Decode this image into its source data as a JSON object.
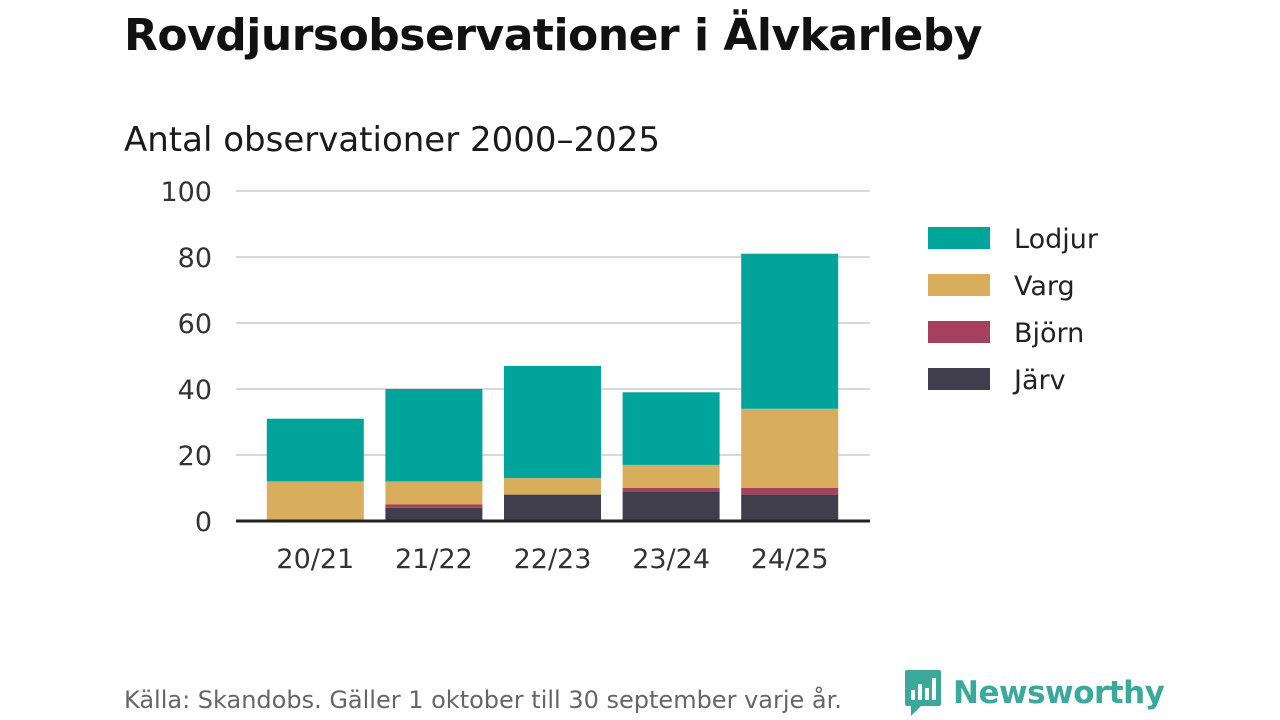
{
  "header": {
    "title": "Rovdjursobservationer i Älvkarleby",
    "subtitle": "Antal observationer 2000–2025"
  },
  "footer": {
    "source": "Källa: Skandobs. Gäller 1 oktober till 30 september varje år.",
    "brand": "Newsworthy"
  },
  "colors": {
    "Lodjur": "#00a49a",
    "Varg": "#d8ad5b",
    "Björn": "#a6405f",
    "Järv": "#403d4c",
    "grid": "#d9d9d9",
    "axis": "#222222",
    "brand": "#3aa89a"
  },
  "chart_data": {
    "type": "bar",
    "stacked": true,
    "title": "Antal observationer 2000–2025",
    "categories": [
      "20/21",
      "21/22",
      "22/23",
      "23/24",
      "24/25"
    ],
    "series": [
      {
        "name": "Järv",
        "values": [
          0,
          4,
          8,
          9,
          8
        ]
      },
      {
        "name": "Björn",
        "values": [
          0,
          1,
          0,
          1,
          2
        ]
      },
      {
        "name": "Varg",
        "values": [
          12,
          7,
          5,
          7,
          24
        ]
      },
      {
        "name": "Lodjur",
        "values": [
          19,
          28,
          34,
          22,
          47
        ]
      }
    ],
    "legend_order": [
      "Lodjur",
      "Varg",
      "Björn",
      "Järv"
    ],
    "ylim": [
      0,
      100
    ],
    "yticks": [
      0,
      20,
      40,
      60,
      80,
      100
    ],
    "grid": true,
    "legend_position": "right"
  }
}
